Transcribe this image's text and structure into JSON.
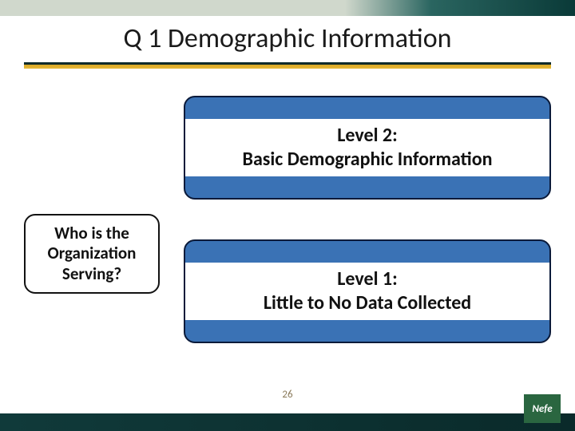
{
  "slide": {
    "title": "Q 1 Demographic Information",
    "page_number": "26"
  },
  "boxes": {
    "level2": {
      "line1": "Level 2:",
      "line2": "Basic Demographic Information",
      "bg_color": "#3a72b5",
      "border_color": "#0a1a3a",
      "text_bg": "#ffffff",
      "text_color": "#111111",
      "font_size": 24
    },
    "question": {
      "text": "Who is the Organization Serving?",
      "bg_color": "#ffffff",
      "border_color": "#121212",
      "text_color": "#111111",
      "font_size": 21
    },
    "level1": {
      "line1": "Level 1:",
      "line2": "Little to No Data Collected",
      "bg_color": "#3a72b5",
      "border_color": "#0a1a3a",
      "text_bg": "#ffffff",
      "text_color": "#111111",
      "font_size": 24
    }
  },
  "style": {
    "header_gradient": [
      "#d0d8cc",
      "#2a6560",
      "#0a3a38"
    ],
    "underline_colors": [
      "#0a2a2a",
      "#d9a826"
    ],
    "footer_color": "#103a3a",
    "page_number_color": "#8a7a5a",
    "title_color": "#1a1a1a",
    "title_fontsize": 34
  },
  "logo": {
    "text": "Nefe",
    "bg_color": "#2a6640",
    "text_color": "#ffffff"
  }
}
